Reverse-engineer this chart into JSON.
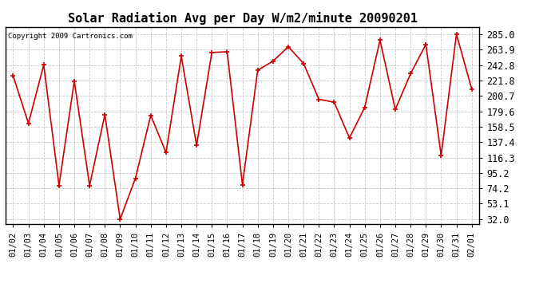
{
  "title": "Solar Radiation Avg per Day W/m2/minute 20090201",
  "copyright": "Copyright 2009 Cartronics.com",
  "dates": [
    "01/02",
    "01/03",
    "01/04",
    "01/05",
    "01/06",
    "01/07",
    "01/08",
    "01/09",
    "01/10",
    "01/11",
    "01/12",
    "01/13",
    "01/14",
    "01/15",
    "01/16",
    "01/17",
    "01/18",
    "01/19",
    "01/20",
    "01/21",
    "01/22",
    "01/23",
    "01/24",
    "01/25",
    "01/26",
    "01/27",
    "01/28",
    "01/29",
    "01/30",
    "01/31",
    "02/01"
  ],
  "values": [
    228,
    163,
    243,
    78,
    221,
    78,
    175,
    32,
    88,
    174,
    123,
    255,
    133,
    260,
    261,
    79,
    236,
    248,
    268,
    245,
    196,
    192,
    143,
    185,
    277,
    182,
    231,
    271,
    119,
    285,
    210
  ],
  "line_color": "#cc0000",
  "marker_color": "#cc0000",
  "bg_color": "#ffffff",
  "plot_bg_color": "#ffffff",
  "grid_color": "#c8c8c8",
  "yticks": [
    32.0,
    53.1,
    74.2,
    95.2,
    116.3,
    137.4,
    158.5,
    179.6,
    200.7,
    221.8,
    242.8,
    263.9,
    285.0
  ],
  "ylim": [
    25,
    295
  ],
  "title_fontsize": 11,
  "copyright_fontsize": 6.5,
  "tick_fontsize": 7.5,
  "ytick_fontsize": 8.5
}
